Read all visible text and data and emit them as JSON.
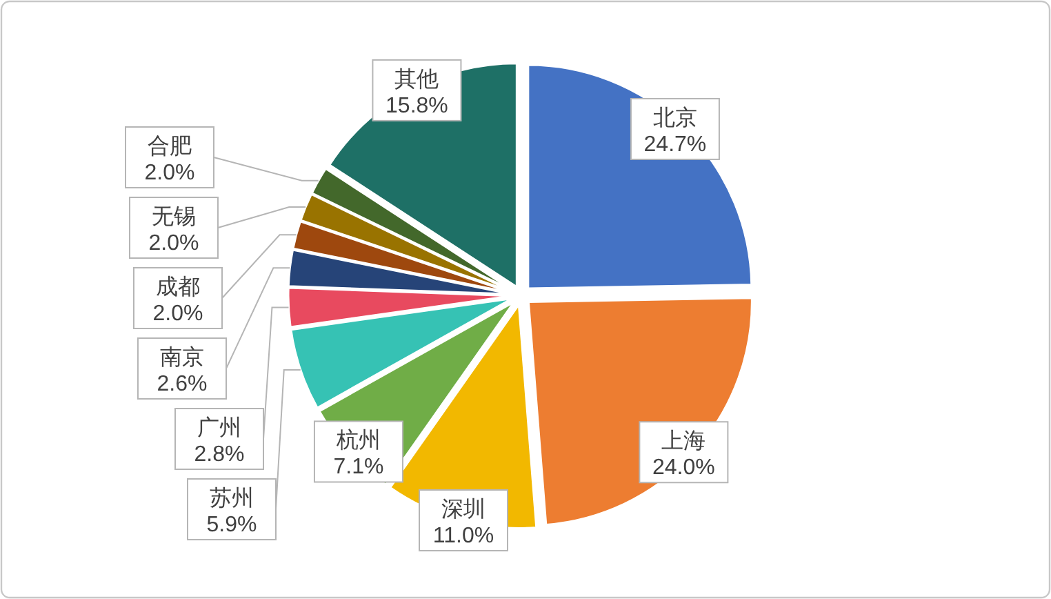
{
  "chart_data": {
    "type": "pie",
    "categories": [
      "北京",
      "上海",
      "深圳",
      "杭州",
      "苏州",
      "广州",
      "南京",
      "成都",
      "无锡",
      "合肥",
      "其他"
    ],
    "values": [
      24.7,
      24.0,
      11.0,
      7.1,
      5.9,
      2.8,
      2.6,
      2.0,
      2.0,
      2.0,
      15.8
    ],
    "value_labels": [
      "24.7%",
      "24.0%",
      "11.0%",
      "7.1%",
      "5.9%",
      "2.8%",
      "2.6%",
      "2.0%",
      "2.0%",
      "2.0%",
      "15.8%"
    ],
    "colors": [
      "#4472c4",
      "#ed7d31",
      "#f2b800",
      "#70ad47",
      "#36c2b4",
      "#e84a5f",
      "#264478",
      "#9e480e",
      "#997300",
      "#43682b",
      "#1e7066"
    ],
    "legend": false
  }
}
